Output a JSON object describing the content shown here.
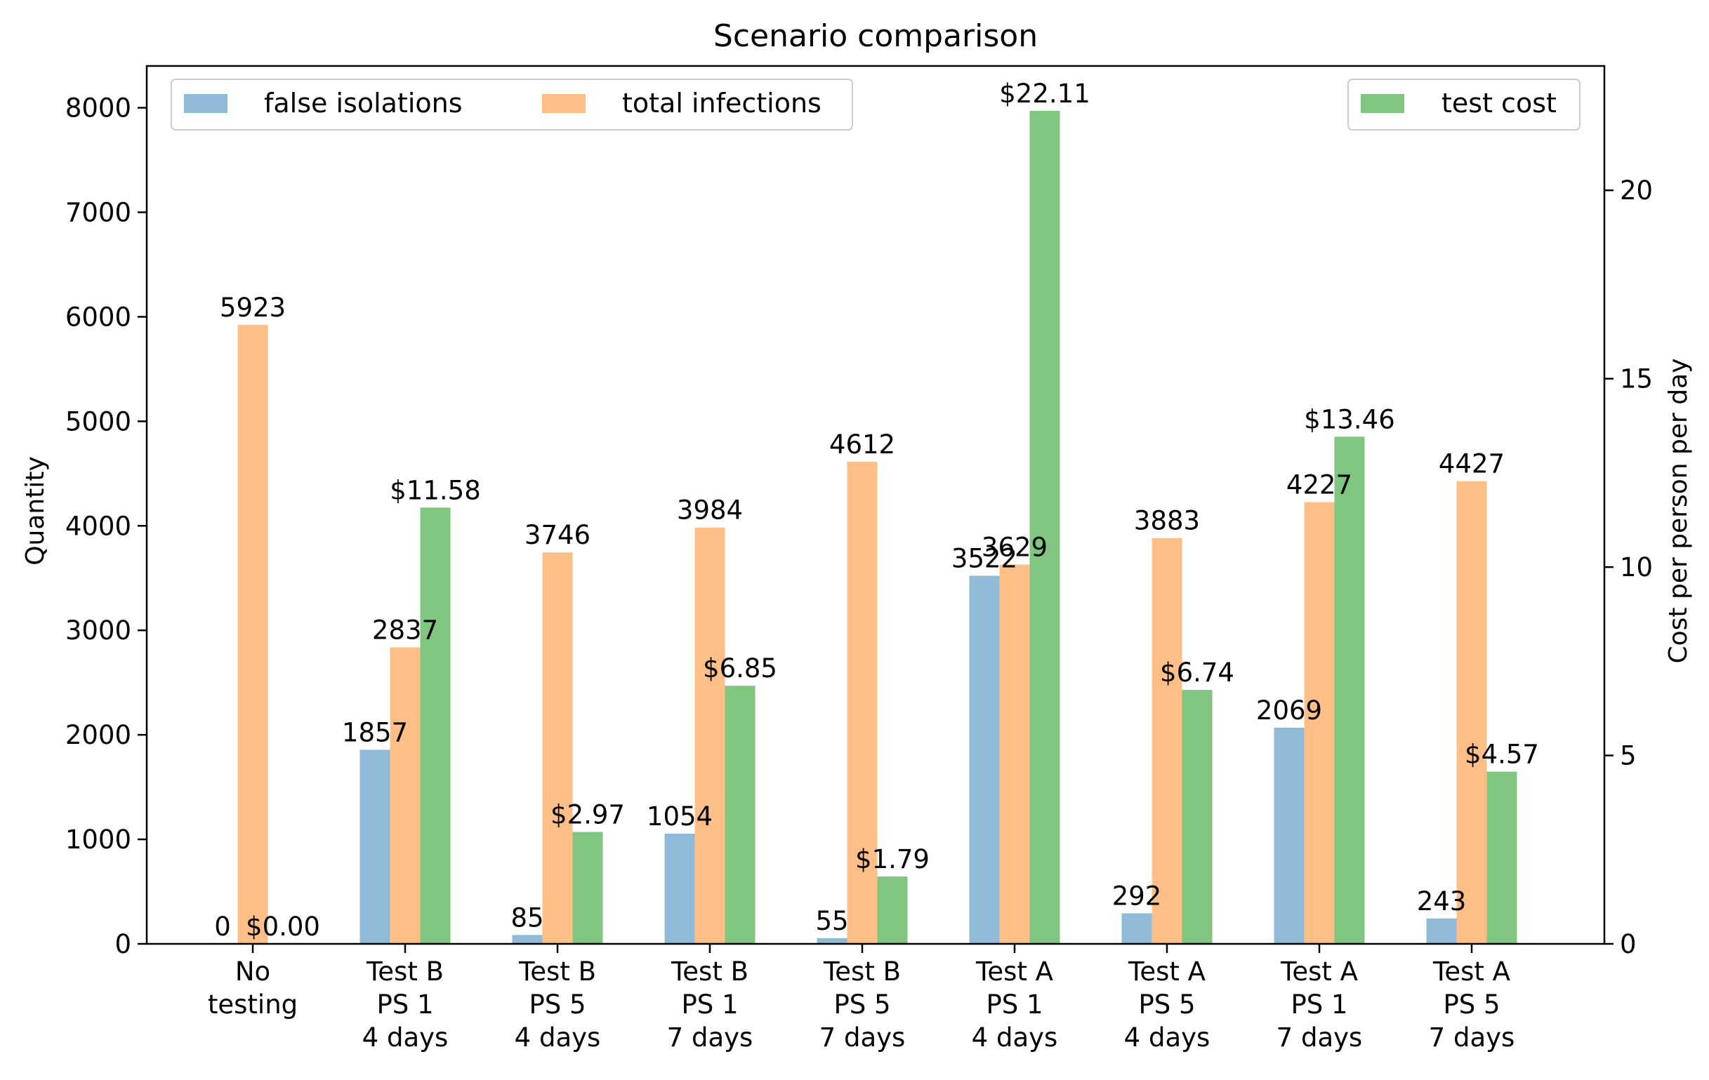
{
  "chart_data": {
    "type": "bar",
    "title": "Scenario comparison",
    "ylabel": "Quantity",
    "y2label": "Cost per person per day",
    "ylim": [
      0,
      8400
    ],
    "y2lim": [
      0,
      23.3
    ],
    "yticks": [
      0,
      1000,
      2000,
      3000,
      4000,
      5000,
      6000,
      7000,
      8000
    ],
    "y2ticks": [
      0,
      5,
      10,
      15,
      20
    ],
    "categories": [
      [
        "No",
        "testing"
      ],
      [
        "Test B",
        "PS 1",
        "4 days"
      ],
      [
        "Test B",
        "PS 5",
        "4 days"
      ],
      [
        "Test B",
        "PS 1",
        "7 days"
      ],
      [
        "Test B",
        "PS 5",
        "7 days"
      ],
      [
        "Test A",
        "PS 1",
        "4 days"
      ],
      [
        "Test A",
        "PS 5",
        "4 days"
      ],
      [
        "Test A",
        "PS 1",
        "7 days"
      ],
      [
        "Test A",
        "PS 5",
        "7 days"
      ]
    ],
    "series": [
      {
        "name": "false isolations",
        "axis": "left",
        "color": "#1f77b4",
        "opacity": 0.5,
        "values": [
          0,
          1857,
          85,
          1054,
          55,
          3522,
          292,
          2069,
          243
        ],
        "labels": [
          "0",
          "1857",
          "85",
          "1054",
          "55",
          "3522",
          "292",
          "2069",
          "243"
        ]
      },
      {
        "name": "total infections",
        "axis": "left",
        "color": "#ff7f0e",
        "opacity": 0.5,
        "values": [
          5923,
          2837,
          3746,
          3984,
          4612,
          3629,
          3883,
          4227,
          4427
        ],
        "labels": [
          "5923",
          "2837",
          "3746",
          "3984",
          "4612",
          "3629",
          "3883",
          "4227",
          "4427"
        ]
      },
      {
        "name": "test cost",
        "axis": "right",
        "color": "#2ca02c",
        "opacity": 0.6,
        "values": [
          0.0,
          11.58,
          2.97,
          6.85,
          1.79,
          22.11,
          6.74,
          13.46,
          4.57
        ],
        "labels": [
          "$0.00",
          "$11.58",
          "$2.97",
          "$6.85",
          "$1.79",
          "$22.11",
          "$6.74",
          "$13.46",
          "$4.57"
        ]
      }
    ],
    "legend_left": {
      "placement": "upper-left",
      "entries": [
        "false isolations",
        "total infections"
      ]
    },
    "legend_right": {
      "placement": "upper-right",
      "entries": [
        "test cost"
      ]
    },
    "grid": false
  }
}
